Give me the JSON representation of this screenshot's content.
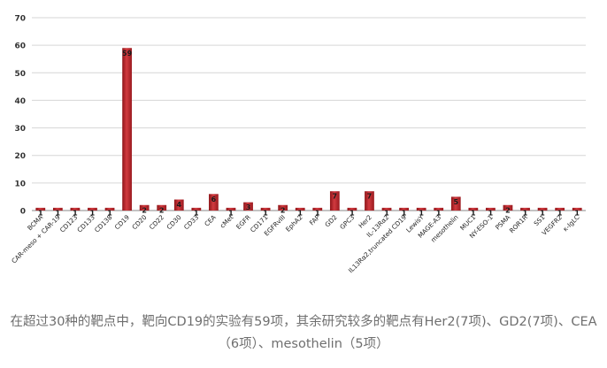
{
  "caption": "在超过30种的靶点中，靶向CD19的实验有59项，其余研究较多的靶点有Her2(7项)、GD2(7项)、CEA（6项）、mesothelin（5项）",
  "chart_data": {
    "type": "bar",
    "title": "",
    "xlabel": "",
    "ylabel": "",
    "ylim": [
      0,
      70
    ],
    "yticks": [
      0,
      10,
      20,
      30,
      40,
      50,
      60,
      70
    ],
    "grid": true,
    "legend": "none",
    "bar_color": "#c0272d",
    "categories": [
      "BCMA",
      "CAR-meso + CAR-19",
      "CD123",
      "CD133",
      "CD138",
      "CD19",
      "CD20",
      "CD22",
      "CD30",
      "CD33",
      "CEA",
      "cMet",
      "EGFR",
      "CD171",
      "EGFRvIII",
      "EphA2",
      "FAP",
      "GD2",
      "GPC3",
      "Her2",
      "IL-13Rα2",
      "IL13Rα2,truncated CD19",
      "LewisY",
      "MAGE-A3",
      "mesothelin",
      "MUC1",
      "NY-ESO-1",
      "PSMA",
      "ROR1R",
      "SS1",
      "VEGFR2",
      "κ-IgLC"
    ],
    "values": [
      1,
      1,
      1,
      1,
      1,
      59,
      2,
      2,
      4,
      1,
      6,
      1,
      3,
      1,
      2,
      1,
      1,
      7,
      1,
      7,
      1,
      1,
      1,
      1,
      5,
      1,
      1,
      2,
      1,
      1,
      1,
      1
    ]
  }
}
